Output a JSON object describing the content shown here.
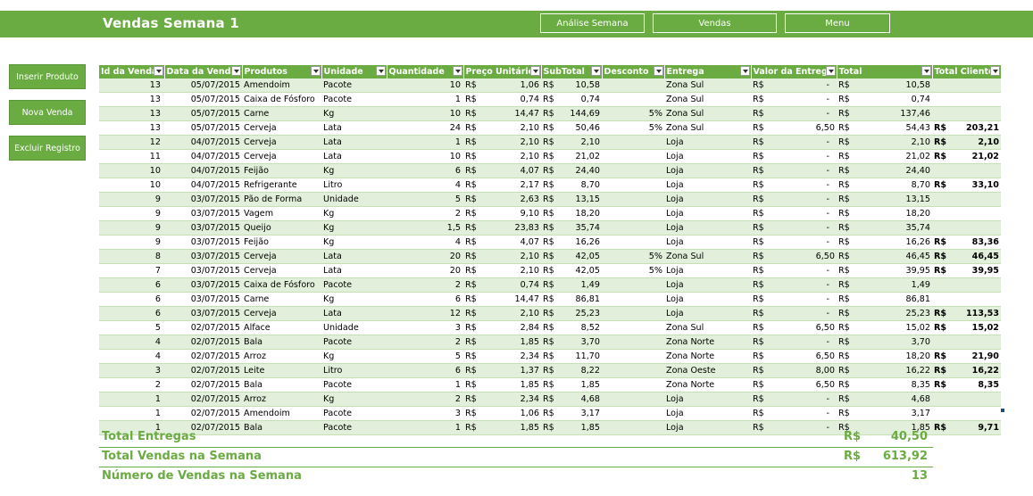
{
  "header": {
    "title": "Vendas Semana 1",
    "buttons": [
      "Análise Semana",
      "Vendas",
      "Menu"
    ]
  },
  "sidebar": {
    "buttons": [
      "Inserir Produto",
      "Nova Venda",
      "Excluir Registro"
    ]
  },
  "table": {
    "columns": [
      "Id da Venda",
      "Data da Venda",
      "Produtos",
      "Unidade",
      "Quantidade",
      "Preço Unitário",
      "SubTotal",
      "Desconto",
      "Entrega",
      "Valor da Entrega",
      "Total",
      "Total Cliente"
    ],
    "currency": "R$",
    "rows": [
      {
        "id": "13",
        "data": "05/07/2015",
        "produto": "Amendoim",
        "unidade": "Pacote",
        "qtd": "10",
        "preco": "1,06",
        "subtotal": "10,58",
        "desconto": "",
        "entrega": "Zona Sul",
        "valor_entrega": "-",
        "total": "10,58",
        "total_cliente": ""
      },
      {
        "id": "13",
        "data": "05/07/2015",
        "produto": "Caixa de Fósforo",
        "unidade": "Pacote",
        "qtd": "1",
        "preco": "0,74",
        "subtotal": "0,74",
        "desconto": "",
        "entrega": "Zona Sul",
        "valor_entrega": "-",
        "total": "0,74",
        "total_cliente": ""
      },
      {
        "id": "13",
        "data": "05/07/2015",
        "produto": "Carne",
        "unidade": "Kg",
        "qtd": "10",
        "preco": "14,47",
        "subtotal": "144,69",
        "desconto": "5%",
        "entrega": "Zona Sul",
        "valor_entrega": "-",
        "total": "137,46",
        "total_cliente": ""
      },
      {
        "id": "13",
        "data": "05/07/2015",
        "produto": "Cerveja",
        "unidade": "Lata",
        "qtd": "24",
        "preco": "2,10",
        "subtotal": "50,46",
        "desconto": "5%",
        "entrega": "Zona Sul",
        "valor_entrega": "6,50",
        "total": "54,43",
        "total_cliente": "203,21"
      },
      {
        "id": "12",
        "data": "04/07/2015",
        "produto": "Cerveja",
        "unidade": "Lata",
        "qtd": "1",
        "preco": "2,10",
        "subtotal": "2,10",
        "desconto": "",
        "entrega": "Loja",
        "valor_entrega": "-",
        "total": "2,10",
        "total_cliente": "2,10"
      },
      {
        "id": "11",
        "data": "04/07/2015",
        "produto": "Cerveja",
        "unidade": "Lata",
        "qtd": "10",
        "preco": "2,10",
        "subtotal": "21,02",
        "desconto": "",
        "entrega": "Loja",
        "valor_entrega": "-",
        "total": "21,02",
        "total_cliente": "21,02"
      },
      {
        "id": "10",
        "data": "04/07/2015",
        "produto": "Feijão",
        "unidade": "Kg",
        "qtd": "6",
        "preco": "4,07",
        "subtotal": "24,40",
        "desconto": "",
        "entrega": "Loja",
        "valor_entrega": "-",
        "total": "24,40",
        "total_cliente": ""
      },
      {
        "id": "10",
        "data": "04/07/2015",
        "produto": "Refrigerante",
        "unidade": "Litro",
        "qtd": "4",
        "preco": "2,17",
        "subtotal": "8,70",
        "desconto": "",
        "entrega": "Loja",
        "valor_entrega": "-",
        "total": "8,70",
        "total_cliente": "33,10"
      },
      {
        "id": "9",
        "data": "03/07/2015",
        "produto": "Pão de Forma",
        "unidade": "Unidade",
        "qtd": "5",
        "preco": "2,63",
        "subtotal": "13,15",
        "desconto": "",
        "entrega": "Loja",
        "valor_entrega": "-",
        "total": "13,15",
        "total_cliente": ""
      },
      {
        "id": "9",
        "data": "03/07/2015",
        "produto": "Vagem",
        "unidade": "Kg",
        "qtd": "2",
        "preco": "9,10",
        "subtotal": "18,20",
        "desconto": "",
        "entrega": "Loja",
        "valor_entrega": "-",
        "total": "18,20",
        "total_cliente": ""
      },
      {
        "id": "9",
        "data": "03/07/2015",
        "produto": "Queijo",
        "unidade": "Kg",
        "qtd": "1,5",
        "preco": "23,83",
        "subtotal": "35,74",
        "desconto": "",
        "entrega": "Loja",
        "valor_entrega": "-",
        "total": "35,74",
        "total_cliente": ""
      },
      {
        "id": "9",
        "data": "03/07/2015",
        "produto": "Feijão",
        "unidade": "Kg",
        "qtd": "4",
        "preco": "4,07",
        "subtotal": "16,26",
        "desconto": "",
        "entrega": "Loja",
        "valor_entrega": "-",
        "total": "16,26",
        "total_cliente": "83,36"
      },
      {
        "id": "8",
        "data": "03/07/2015",
        "produto": "Cerveja",
        "unidade": "Lata",
        "qtd": "20",
        "preco": "2,10",
        "subtotal": "42,05",
        "desconto": "5%",
        "entrega": "Zona Sul",
        "valor_entrega": "6,50",
        "total": "46,45",
        "total_cliente": "46,45"
      },
      {
        "id": "7",
        "data": "03/07/2015",
        "produto": "Cerveja",
        "unidade": "Lata",
        "qtd": "20",
        "preco": "2,10",
        "subtotal": "42,05",
        "desconto": "5%",
        "entrega": "Loja",
        "valor_entrega": "-",
        "total": "39,95",
        "total_cliente": "39,95"
      },
      {
        "id": "6",
        "data": "03/07/2015",
        "produto": "Caixa de Fósforo",
        "unidade": "Pacote",
        "qtd": "2",
        "preco": "0,74",
        "subtotal": "1,49",
        "desconto": "",
        "entrega": "Loja",
        "valor_entrega": "-",
        "total": "1,49",
        "total_cliente": ""
      },
      {
        "id": "6",
        "data": "03/07/2015",
        "produto": "Carne",
        "unidade": "Kg",
        "qtd": "6",
        "preco": "14,47",
        "subtotal": "86,81",
        "desconto": "",
        "entrega": "Loja",
        "valor_entrega": "-",
        "total": "86,81",
        "total_cliente": ""
      },
      {
        "id": "6",
        "data": "03/07/2015",
        "produto": "Cerveja",
        "unidade": "Lata",
        "qtd": "12",
        "preco": "2,10",
        "subtotal": "25,23",
        "desconto": "",
        "entrega": "Loja",
        "valor_entrega": "-",
        "total": "25,23",
        "total_cliente": "113,53"
      },
      {
        "id": "5",
        "data": "02/07/2015",
        "produto": "Alface",
        "unidade": "Unidade",
        "qtd": "3",
        "preco": "2,84",
        "subtotal": "8,52",
        "desconto": "",
        "entrega": "Zona Sul",
        "valor_entrega": "6,50",
        "total": "15,02",
        "total_cliente": "15,02"
      },
      {
        "id": "4",
        "data": "02/07/2015",
        "produto": "Bala",
        "unidade": "Pacote",
        "qtd": "2",
        "preco": "1,85",
        "subtotal": "3,70",
        "desconto": "",
        "entrega": "Zona Norte",
        "valor_entrega": "-",
        "total": "3,70",
        "total_cliente": ""
      },
      {
        "id": "4",
        "data": "02/07/2015",
        "produto": "Arroz",
        "unidade": "Kg",
        "qtd": "5",
        "preco": "2,34",
        "subtotal": "11,70",
        "desconto": "",
        "entrega": "Zona Norte",
        "valor_entrega": "6,50",
        "total": "18,20",
        "total_cliente": "21,90"
      },
      {
        "id": "3",
        "data": "02/07/2015",
        "produto": "Leite",
        "unidade": "Litro",
        "qtd": "6",
        "preco": "1,37",
        "subtotal": "8,22",
        "desconto": "",
        "entrega": "Zona Oeste",
        "valor_entrega": "8,00",
        "total": "16,22",
        "total_cliente": "16,22"
      },
      {
        "id": "2",
        "data": "02/07/2015",
        "produto": "Bala",
        "unidade": "Pacote",
        "qtd": "1",
        "preco": "1,85",
        "subtotal": "1,85",
        "desconto": "",
        "entrega": "Zona Norte",
        "valor_entrega": "6,50",
        "total": "8,35",
        "total_cliente": "8,35"
      },
      {
        "id": "1",
        "data": "02/07/2015",
        "produto": "Arroz",
        "unidade": "Kg",
        "qtd": "2",
        "preco": "2,34",
        "subtotal": "4,68",
        "desconto": "",
        "entrega": "Loja",
        "valor_entrega": "-",
        "total": "4,68",
        "total_cliente": ""
      },
      {
        "id": "1",
        "data": "02/07/2015",
        "produto": "Amendoim",
        "unidade": "Pacote",
        "qtd": "3",
        "preco": "1,06",
        "subtotal": "3,17",
        "desconto": "",
        "entrega": "Loja",
        "valor_entrega": "-",
        "total": "3,17",
        "total_cliente": ""
      },
      {
        "id": "1",
        "data": "02/07/2015",
        "produto": "Bala",
        "unidade": "Pacote",
        "qtd": "1",
        "preco": "1,85",
        "subtotal": "1,85",
        "desconto": "",
        "entrega": "Loja",
        "valor_entrega": "-",
        "total": "1,85",
        "total_cliente": "9,71"
      }
    ]
  },
  "summary": [
    {
      "label": "Total Entregas",
      "currency": "R$",
      "value": "40,50"
    },
    {
      "label": "Total Vendas na Semana",
      "currency": "R$",
      "value": "613,92"
    },
    {
      "label": "Número de Vendas na Semana",
      "currency": "",
      "value": "13"
    }
  ],
  "colors": {
    "accent": "#6aab42",
    "band": "#e2efda"
  }
}
